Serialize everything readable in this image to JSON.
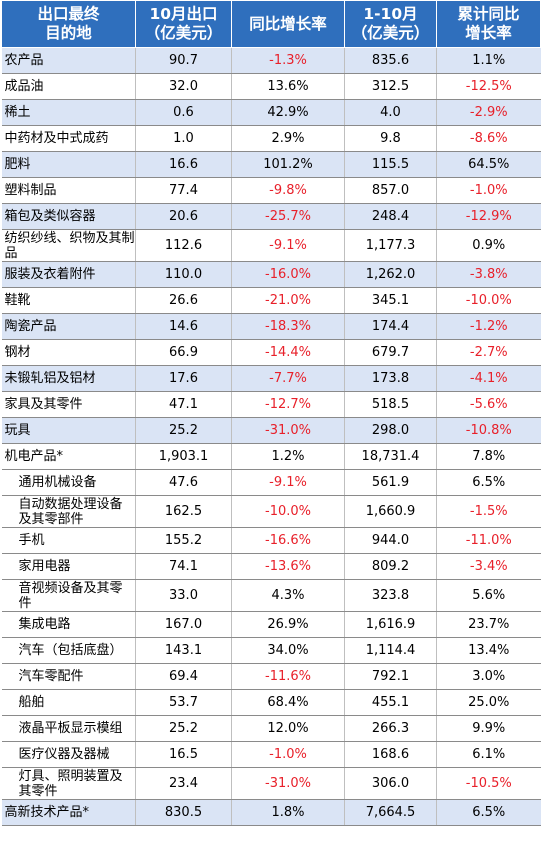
{
  "headers": [
    "出口最终\n目的地",
    "10月出口\n（亿美元）",
    "同比增长率",
    "1-10月\n（亿美元）",
    "累计同比\n增长率"
  ],
  "rows": [
    {
      "name": "农产品",
      "oct": "90.7",
      "yoy": "-1.3%",
      "ytd": "835.6",
      "cum": "1.1%",
      "hl": true
    },
    {
      "name": "成品油",
      "oct": "32.0",
      "yoy": "13.6%",
      "ytd": "312.5",
      "cum": "-12.5%",
      "hl": false
    },
    {
      "name": "稀土",
      "oct": "0.6",
      "yoy": "42.9%",
      "ytd": "4.0",
      "cum": "-2.9%",
      "hl": true
    },
    {
      "name": "中药材及中式成药",
      "oct": "1.0",
      "yoy": "2.9%",
      "ytd": "9.8",
      "cum": "-8.6%",
      "hl": false
    },
    {
      "name": "肥料",
      "oct": "16.6",
      "yoy": "101.2%",
      "ytd": "115.5",
      "cum": "64.5%",
      "hl": true
    },
    {
      "name": "塑料制品",
      "oct": "77.4",
      "yoy": "-9.8%",
      "ytd": "857.0",
      "cum": "-1.0%",
      "hl": false
    },
    {
      "name": "箱包及类似容器",
      "oct": "20.6",
      "yoy": "-25.7%",
      "ytd": "248.4",
      "cum": "-12.9%",
      "hl": true
    },
    {
      "name": "纺织纱线、织物及其制品",
      "oct": "112.6",
      "yoy": "-9.1%",
      "ytd": "1,177.3",
      "cum": "0.9%",
      "hl": false,
      "tall": true
    },
    {
      "name": "服装及衣着附件",
      "oct": "110.0",
      "yoy": "-16.0%",
      "ytd": "1,262.0",
      "cum": "-3.8%",
      "hl": true
    },
    {
      "name": "鞋靴",
      "oct": "26.6",
      "yoy": "-21.0%",
      "ytd": "345.1",
      "cum": "-10.0%",
      "hl": false
    },
    {
      "name": "陶瓷产品",
      "oct": "14.6",
      "yoy": "-18.3%",
      "ytd": "174.4",
      "cum": "-1.2%",
      "hl": true
    },
    {
      "name": "钢材",
      "oct": "66.9",
      "yoy": "-14.4%",
      "ytd": "679.7",
      "cum": "-2.7%",
      "hl": false
    },
    {
      "name": "未锻轧铝及铝材",
      "oct": "17.6",
      "yoy": "-7.7%",
      "ytd": "173.8",
      "cum": "-4.1%",
      "hl": true
    },
    {
      "name": "家具及其零件",
      "oct": "47.1",
      "yoy": "-12.7%",
      "ytd": "518.5",
      "cum": "-5.6%",
      "hl": false
    },
    {
      "name": "玩具",
      "oct": "25.2",
      "yoy": "-31.0%",
      "ytd": "298.0",
      "cum": "-10.8%",
      "hl": true
    },
    {
      "name": "机电产品*",
      "oct": "1,903.1",
      "yoy": "1.2%",
      "ytd": "18,731.4",
      "cum": "7.8%",
      "hl": false
    },
    {
      "name": "通用机械设备",
      "oct": "47.6",
      "yoy": "-9.1%",
      "ytd": "561.9",
      "cum": "6.5%",
      "hl": false,
      "sub": true
    },
    {
      "name": "自动数据处理设备及其零部件",
      "oct": "162.5",
      "yoy": "-10.0%",
      "ytd": "1,660.9",
      "cum": "-1.5%",
      "hl": false,
      "sub": true,
      "tall": true
    },
    {
      "name": "手机",
      "oct": "155.2",
      "yoy": "-16.6%",
      "ytd": "944.0",
      "cum": "-11.0%",
      "hl": false,
      "sub": true
    },
    {
      "name": "家用电器",
      "oct": "74.1",
      "yoy": "-13.6%",
      "ytd": "809.2",
      "cum": "-3.4%",
      "hl": false,
      "sub": true
    },
    {
      "name": "音视频设备及其零件",
      "oct": "33.0",
      "yoy": "4.3%",
      "ytd": "323.8",
      "cum": "5.6%",
      "hl": false,
      "sub": true,
      "tall": true
    },
    {
      "name": "集成电路",
      "oct": "167.0",
      "yoy": "26.9%",
      "ytd": "1,616.9",
      "cum": "23.7%",
      "hl": false,
      "sub": true
    },
    {
      "name": "汽车（包括底盘）",
      "oct": "143.1",
      "yoy": "34.0%",
      "ytd": "1,114.4",
      "cum": "13.4%",
      "hl": false,
      "sub": true
    },
    {
      "name": "汽车零配件",
      "oct": "69.4",
      "yoy": "-11.6%",
      "ytd": "792.1",
      "cum": "3.0%",
      "hl": false,
      "sub": true
    },
    {
      "name": "船舶",
      "oct": "53.7",
      "yoy": "68.4%",
      "ytd": "455.1",
      "cum": "25.0%",
      "hl": false,
      "sub": true
    },
    {
      "name": "液晶平板显示模组",
      "oct": "25.2",
      "yoy": "12.0%",
      "ytd": "266.3",
      "cum": "9.9%",
      "hl": false,
      "sub": true
    },
    {
      "name": "医疗仪器及器械",
      "oct": "16.5",
      "yoy": "-1.0%",
      "ytd": "168.6",
      "cum": "6.1%",
      "hl": false,
      "sub": true
    },
    {
      "name": "灯具、照明装置及其零件",
      "oct": "23.4",
      "yoy": "-31.0%",
      "ytd": "306.0",
      "cum": "-10.5%",
      "hl": false,
      "sub": true,
      "tall": true
    },
    {
      "name": "高新技术产品*",
      "oct": "830.5",
      "yoy": "1.8%",
      "ytd": "7,664.5",
      "cum": "6.5%",
      "hl": true
    }
  ],
  "colors": {
    "header_bg": "#2f6fbd",
    "highlight_row": "#dae4f5",
    "negative": "#e8202a"
  }
}
